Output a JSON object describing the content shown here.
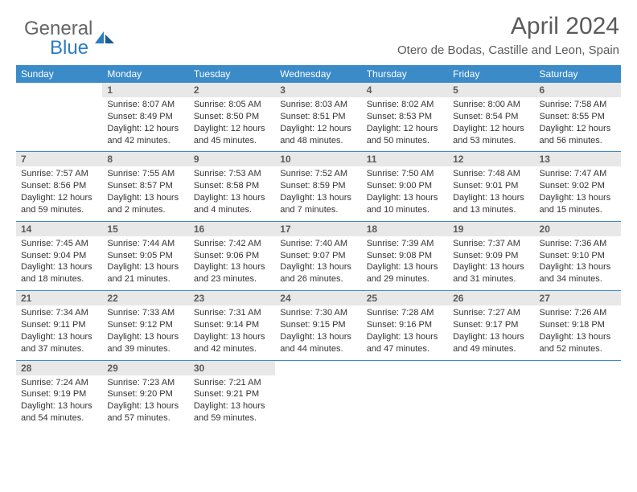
{
  "brand": {
    "part1": "General",
    "part2": "Blue",
    "part1_color": "#666666",
    "part2_color": "#2b7cc2"
  },
  "header": {
    "title": "April 2024",
    "subtitle": "Otero de Bodas, Castille and Leon, Spain"
  },
  "styling": {
    "page_bg": "#ffffff",
    "header_bar_bg": "#3b8bc9",
    "header_bar_text": "#ffffff",
    "daynum_bg": "#e8e8e8",
    "daynum_text": "#5a5a5a",
    "week_border": "#3b8bc9",
    "body_text": "#333333",
    "title_color": "#5a5a5a",
    "title_fontsize": 30,
    "subtitle_fontsize": 15,
    "cell_fontsize": 11,
    "weekday_fontsize": 12
  },
  "weekdays": [
    "Sunday",
    "Monday",
    "Tuesday",
    "Wednesday",
    "Thursday",
    "Friday",
    "Saturday"
  ],
  "weeks": [
    {
      "days": [
        null,
        {
          "n": "1",
          "sr": "Sunrise: 8:07 AM",
          "ss": "Sunset: 8:49 PM",
          "dl": "Daylight: 12 hours and 42 minutes."
        },
        {
          "n": "2",
          "sr": "Sunrise: 8:05 AM",
          "ss": "Sunset: 8:50 PM",
          "dl": "Daylight: 12 hours and 45 minutes."
        },
        {
          "n": "3",
          "sr": "Sunrise: 8:03 AM",
          "ss": "Sunset: 8:51 PM",
          "dl": "Daylight: 12 hours and 48 minutes."
        },
        {
          "n": "4",
          "sr": "Sunrise: 8:02 AM",
          "ss": "Sunset: 8:53 PM",
          "dl": "Daylight: 12 hours and 50 minutes."
        },
        {
          "n": "5",
          "sr": "Sunrise: 8:00 AM",
          "ss": "Sunset: 8:54 PM",
          "dl": "Daylight: 12 hours and 53 minutes."
        },
        {
          "n": "6",
          "sr": "Sunrise: 7:58 AM",
          "ss": "Sunset: 8:55 PM",
          "dl": "Daylight: 12 hours and 56 minutes."
        }
      ]
    },
    {
      "days": [
        {
          "n": "7",
          "sr": "Sunrise: 7:57 AM",
          "ss": "Sunset: 8:56 PM",
          "dl": "Daylight: 12 hours and 59 minutes."
        },
        {
          "n": "8",
          "sr": "Sunrise: 7:55 AM",
          "ss": "Sunset: 8:57 PM",
          "dl": "Daylight: 13 hours and 2 minutes."
        },
        {
          "n": "9",
          "sr": "Sunrise: 7:53 AM",
          "ss": "Sunset: 8:58 PM",
          "dl": "Daylight: 13 hours and 4 minutes."
        },
        {
          "n": "10",
          "sr": "Sunrise: 7:52 AM",
          "ss": "Sunset: 8:59 PM",
          "dl": "Daylight: 13 hours and 7 minutes."
        },
        {
          "n": "11",
          "sr": "Sunrise: 7:50 AM",
          "ss": "Sunset: 9:00 PM",
          "dl": "Daylight: 13 hours and 10 minutes."
        },
        {
          "n": "12",
          "sr": "Sunrise: 7:48 AM",
          "ss": "Sunset: 9:01 PM",
          "dl": "Daylight: 13 hours and 13 minutes."
        },
        {
          "n": "13",
          "sr": "Sunrise: 7:47 AM",
          "ss": "Sunset: 9:02 PM",
          "dl": "Daylight: 13 hours and 15 minutes."
        }
      ]
    },
    {
      "days": [
        {
          "n": "14",
          "sr": "Sunrise: 7:45 AM",
          "ss": "Sunset: 9:04 PM",
          "dl": "Daylight: 13 hours and 18 minutes."
        },
        {
          "n": "15",
          "sr": "Sunrise: 7:44 AM",
          "ss": "Sunset: 9:05 PM",
          "dl": "Daylight: 13 hours and 21 minutes."
        },
        {
          "n": "16",
          "sr": "Sunrise: 7:42 AM",
          "ss": "Sunset: 9:06 PM",
          "dl": "Daylight: 13 hours and 23 minutes."
        },
        {
          "n": "17",
          "sr": "Sunrise: 7:40 AM",
          "ss": "Sunset: 9:07 PM",
          "dl": "Daylight: 13 hours and 26 minutes."
        },
        {
          "n": "18",
          "sr": "Sunrise: 7:39 AM",
          "ss": "Sunset: 9:08 PM",
          "dl": "Daylight: 13 hours and 29 minutes."
        },
        {
          "n": "19",
          "sr": "Sunrise: 7:37 AM",
          "ss": "Sunset: 9:09 PM",
          "dl": "Daylight: 13 hours and 31 minutes."
        },
        {
          "n": "20",
          "sr": "Sunrise: 7:36 AM",
          "ss": "Sunset: 9:10 PM",
          "dl": "Daylight: 13 hours and 34 minutes."
        }
      ]
    },
    {
      "days": [
        {
          "n": "21",
          "sr": "Sunrise: 7:34 AM",
          "ss": "Sunset: 9:11 PM",
          "dl": "Daylight: 13 hours and 37 minutes."
        },
        {
          "n": "22",
          "sr": "Sunrise: 7:33 AM",
          "ss": "Sunset: 9:12 PM",
          "dl": "Daylight: 13 hours and 39 minutes."
        },
        {
          "n": "23",
          "sr": "Sunrise: 7:31 AM",
          "ss": "Sunset: 9:14 PM",
          "dl": "Daylight: 13 hours and 42 minutes."
        },
        {
          "n": "24",
          "sr": "Sunrise: 7:30 AM",
          "ss": "Sunset: 9:15 PM",
          "dl": "Daylight: 13 hours and 44 minutes."
        },
        {
          "n": "25",
          "sr": "Sunrise: 7:28 AM",
          "ss": "Sunset: 9:16 PM",
          "dl": "Daylight: 13 hours and 47 minutes."
        },
        {
          "n": "26",
          "sr": "Sunrise: 7:27 AM",
          "ss": "Sunset: 9:17 PM",
          "dl": "Daylight: 13 hours and 49 minutes."
        },
        {
          "n": "27",
          "sr": "Sunrise: 7:26 AM",
          "ss": "Sunset: 9:18 PM",
          "dl": "Daylight: 13 hours and 52 minutes."
        }
      ]
    },
    {
      "days": [
        {
          "n": "28",
          "sr": "Sunrise: 7:24 AM",
          "ss": "Sunset: 9:19 PM",
          "dl": "Daylight: 13 hours and 54 minutes."
        },
        {
          "n": "29",
          "sr": "Sunrise: 7:23 AM",
          "ss": "Sunset: 9:20 PM",
          "dl": "Daylight: 13 hours and 57 minutes."
        },
        {
          "n": "30",
          "sr": "Sunrise: 7:21 AM",
          "ss": "Sunset: 9:21 PM",
          "dl": "Daylight: 13 hours and 59 minutes."
        },
        null,
        null,
        null,
        null
      ]
    }
  ]
}
